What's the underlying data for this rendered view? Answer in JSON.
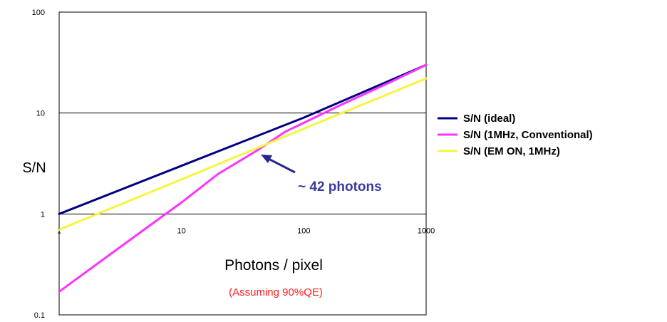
{
  "chart_data": {
    "type": "line",
    "xscale": "log",
    "yscale": "log",
    "xlim": [
      1,
      1000
    ],
    "ylim": [
      0.1,
      100
    ],
    "x_ticks": [
      "1",
      "10",
      "100",
      "1000"
    ],
    "y_ticks": [
      "0.1",
      "1",
      "10",
      "100"
    ],
    "ylabel": "S/N",
    "xlabel": "Photons / pixel",
    "note": "(Assuming 90%QE)",
    "grid": "horizontal major",
    "legend_position": "right",
    "annotation": {
      "text": "~ 42 photons",
      "x": 42,
      "y": 4.3
    },
    "series": [
      {
        "name": "S/N (ideal)",
        "color": "#000080",
        "x": [
          1,
          10,
          100,
          1000
        ],
        "y": [
          1.0,
          3.0,
          9.0,
          30.0
        ]
      },
      {
        "name": "S/N (1MHz, Conventional)",
        "color": "#ff33ff",
        "x": [
          1,
          3,
          7,
          10,
          20,
          42,
          70,
          100,
          200,
          500,
          1000
        ],
        "y": [
          0.17,
          0.45,
          0.95,
          1.3,
          2.5,
          4.3,
          6.5,
          8.0,
          12.0,
          20.0,
          30.0
        ]
      },
      {
        "name": "S/N (EM ON, 1MHz)",
        "color": "#f5f542",
        "x": [
          1,
          10,
          100,
          1000
        ],
        "y": [
          0.7,
          2.2,
          7.0,
          22.0
        ]
      }
    ]
  }
}
